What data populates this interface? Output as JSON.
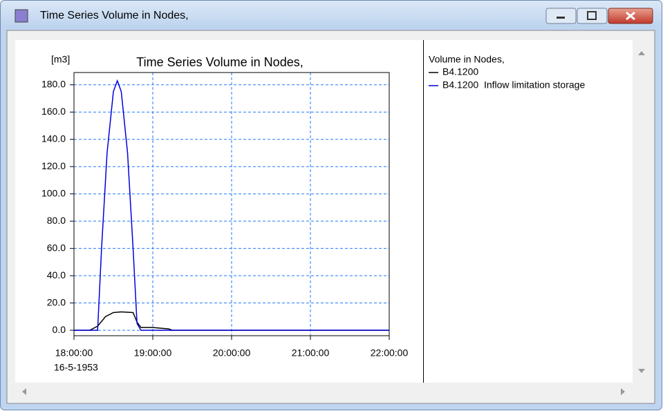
{
  "window": {
    "title": "Time Series Volume in Nodes,"
  },
  "chart_data": {
    "type": "line",
    "title": "Time Series Volume in Nodes,",
    "y_unit": "[m3]",
    "x_date_label": "16-5-1953",
    "legend_title": "Volume in Nodes,",
    "xlim": [
      18,
      22
    ],
    "xticks": [
      {
        "value": 18,
        "label": "18:00:00"
      },
      {
        "value": 19,
        "label": "19:00:00"
      },
      {
        "value": 20,
        "label": "20:00:00"
      },
      {
        "value": 21,
        "label": "21:00:00"
      },
      {
        "value": 22,
        "label": "22:00:00"
      }
    ],
    "ylim": [
      -4,
      189
    ],
    "yticks": [
      {
        "value": 0,
        "label": "0.0"
      },
      {
        "value": 20,
        "label": "20.0"
      },
      {
        "value": 40,
        "label": "40.0"
      },
      {
        "value": 60,
        "label": "60.0"
      },
      {
        "value": 80,
        "label": "80.0"
      },
      {
        "value": 100,
        "label": "100.0"
      },
      {
        "value": 120,
        "label": "120.0"
      },
      {
        "value": 140,
        "label": "140.0"
      },
      {
        "value": 160,
        "label": "160.0"
      },
      {
        "value": 180,
        "label": "180.0"
      }
    ],
    "grid": true,
    "series": [
      {
        "name": "B4.1200",
        "color": "#000000",
        "x": [
          18,
          18.2,
          18.3,
          18.4,
          18.5,
          18.6,
          18.75,
          18.8,
          18.85,
          19.0,
          19.2,
          19.25,
          22
        ],
        "values": [
          0,
          0,
          3,
          10,
          13,
          13.5,
          13,
          6,
          2,
          2,
          1,
          0,
          0
        ]
      },
      {
        "name": "B4.1200  Inflow limitation storage",
        "color": "#0000dd",
        "x": [
          18,
          18.3,
          18.35,
          18.42,
          18.5,
          18.55,
          18.6,
          18.68,
          18.75,
          18.8,
          18.85,
          22
        ],
        "values": [
          0,
          0,
          60,
          130,
          175,
          183,
          175,
          130,
          60,
          5,
          0,
          0
        ]
      }
    ]
  }
}
